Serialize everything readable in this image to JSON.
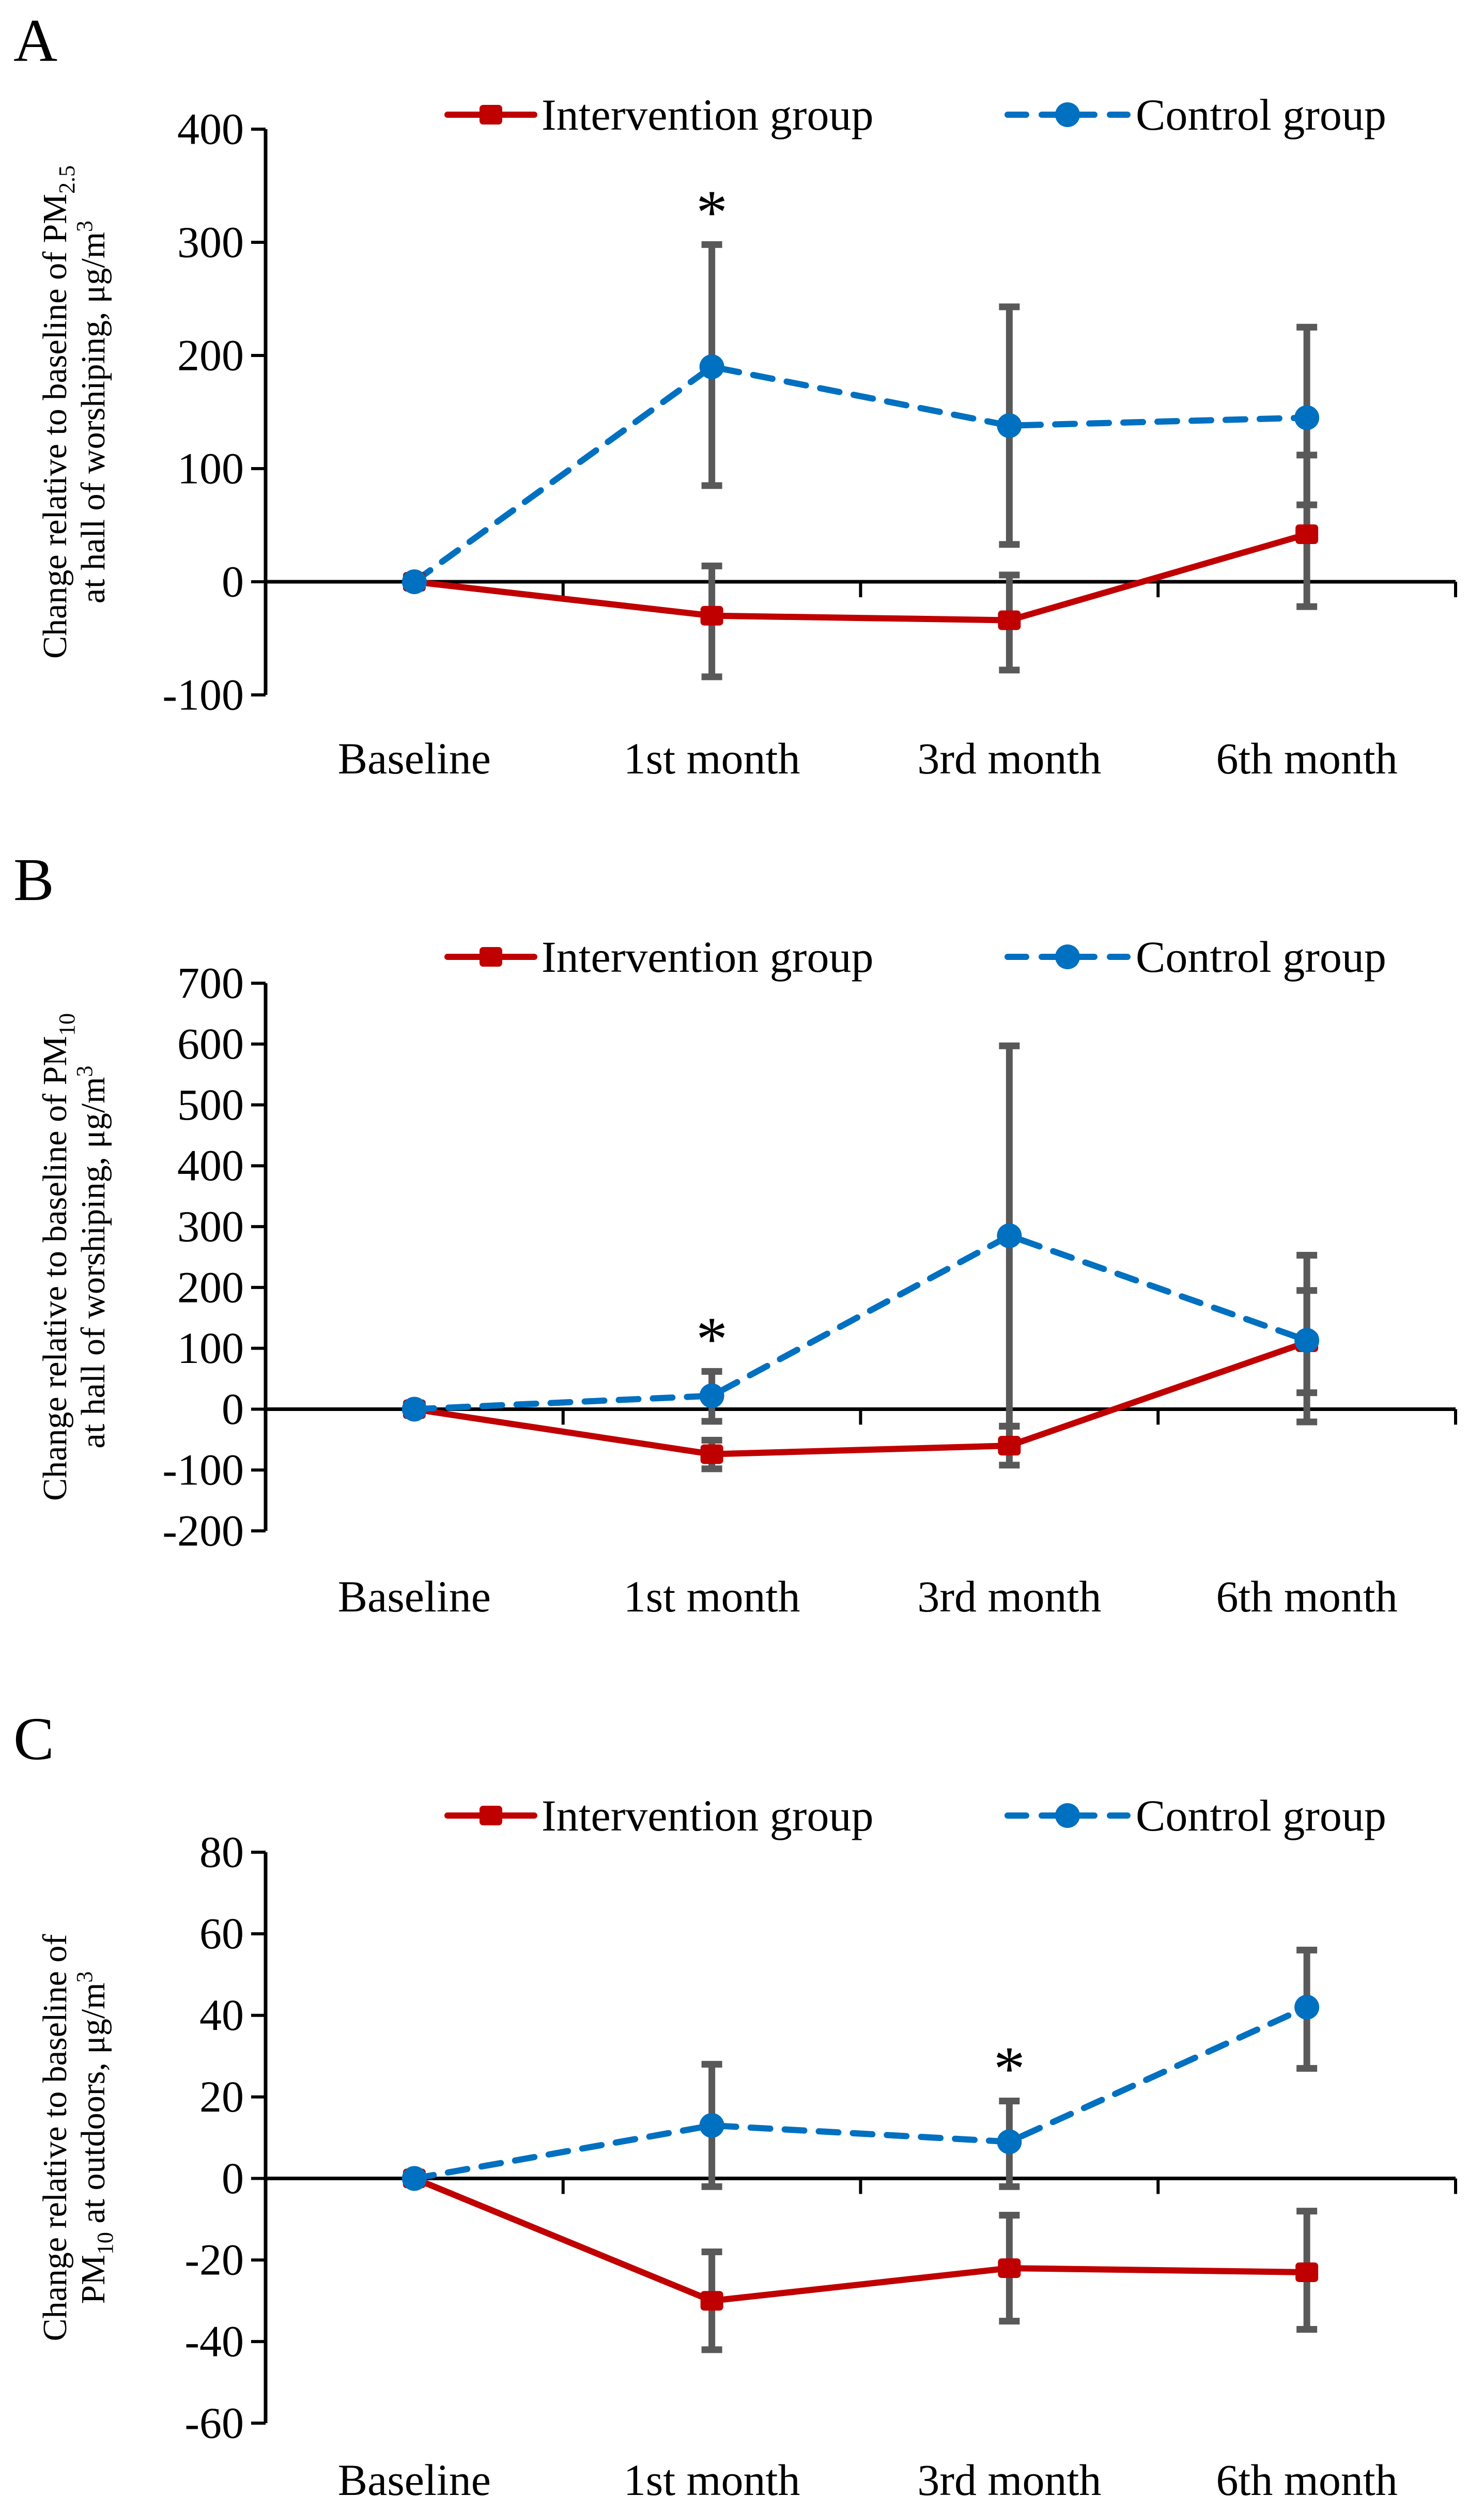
{
  "figure": {
    "background": "#ffffff",
    "error_bar_color": "#595959",
    "axis_color": "#000000",
    "text_color": "#000000"
  },
  "legend": {
    "items": [
      {
        "label": "Intervention group",
        "color": "#C00000",
        "marker": "square",
        "line_style": "solid"
      },
      {
        "label": "Control group",
        "color": "#0070C0",
        "marker": "circle",
        "line_style": "dashed"
      }
    ]
  },
  "chart_data": [
    {
      "type": "line",
      "panel_label": "A",
      "categories": [
        "Baseline",
        "1st month",
        "3rd month",
        "6th month"
      ],
      "ylabel_line1": "Change relative to baseline of PM",
      "ylabel_line1_sub": "2.5",
      "ylabel_line2": "at hall of worshiping, μg/m",
      "ylabel_line2_sup": "3",
      "ylim": [
        -100,
        400
      ],
      "yticks": [
        400,
        300,
        200,
        100,
        0,
        -100
      ],
      "grid": false,
      "legend_position": "top",
      "series": [
        {
          "name": "Intervention group",
          "color": "#C00000",
          "marker": "square",
          "line_style": "solid",
          "values": [
            0,
            -30,
            -34,
            42
          ],
          "err_lo": [
            null,
            -84,
            -78,
            -22
          ],
          "err_hi": [
            null,
            14,
            6,
            112
          ]
        },
        {
          "name": "Control group",
          "color": "#0070C0",
          "marker": "circle",
          "line_style": "dashed",
          "values": [
            0,
            190,
            138,
            145
          ],
          "err_lo": [
            null,
            85,
            33,
            68
          ],
          "err_hi": [
            null,
            298,
            243,
            225
          ]
        }
      ],
      "annotations": [
        {
          "text": "*",
          "series": 1,
          "category": 1
        }
      ]
    },
    {
      "type": "line",
      "panel_label": "B",
      "categories": [
        "Baseline",
        "1st month",
        "3rd month",
        "6th month"
      ],
      "ylabel_line1": "Change relative to baseline of PM",
      "ylabel_line1_sub": "10",
      "ylabel_line2": "at hall of worshiping, μg/m",
      "ylabel_line2_sup": "3",
      "ylim": [
        -200,
        700
      ],
      "yticks": [
        700,
        600,
        500,
        400,
        300,
        200,
        100,
        0,
        -100,
        -200
      ],
      "grid": false,
      "legend_position": "top",
      "series": [
        {
          "name": "Intervention group",
          "color": "#C00000",
          "marker": "square",
          "line_style": "solid",
          "values": [
            0,
            -74,
            -60,
            110
          ],
          "err_lo": [
            null,
            -98,
            -92,
            27
          ],
          "err_hi": [
            null,
            -51,
            -28,
            195
          ]
        },
        {
          "name": "Control group",
          "color": "#0070C0",
          "marker": "circle",
          "line_style": "dashed",
          "values": [
            0,
            22,
            285,
            113
          ],
          "err_lo": [
            null,
            -20,
            -28,
            -21
          ],
          "err_hi": [
            null,
            62,
            597,
            253
          ]
        }
      ],
      "annotations": [
        {
          "text": "*",
          "series": 1,
          "category": 1
        }
      ]
    },
    {
      "type": "line",
      "panel_label": "C",
      "categories": [
        "Baseline",
        "1st month",
        "3rd month",
        "6th month"
      ],
      "ylabel_line1": "Change relative to baseline of",
      "ylabel_line1_sub": "",
      "ylabel_line2_pre_sub": "PM",
      "ylabel_line2_sub": "10",
      "ylabel_line2": " at outdoors, μg/m",
      "ylabel_line2_sup": "3",
      "ylim": [
        -60,
        80
      ],
      "yticks": [
        80,
        60,
        40,
        20,
        0,
        -20,
        -40,
        -60
      ],
      "grid": false,
      "legend_position": "top",
      "series": [
        {
          "name": "Intervention group",
          "color": "#C00000",
          "marker": "square",
          "line_style": "solid",
          "values": [
            0,
            -30,
            -22,
            -23
          ],
          "err_lo": [
            null,
            -42,
            -35,
            -37
          ],
          "err_hi": [
            null,
            -18,
            -9,
            -8
          ]
        },
        {
          "name": "Control group",
          "color": "#0070C0",
          "marker": "circle",
          "line_style": "dashed",
          "values": [
            0,
            13,
            9,
            42
          ],
          "err_lo": [
            null,
            -2,
            -2,
            27
          ],
          "err_hi": [
            null,
            28,
            19,
            56
          ]
        }
      ],
      "annotations": [
        {
          "text": "*",
          "series": 1,
          "category": 2
        }
      ]
    }
  ]
}
